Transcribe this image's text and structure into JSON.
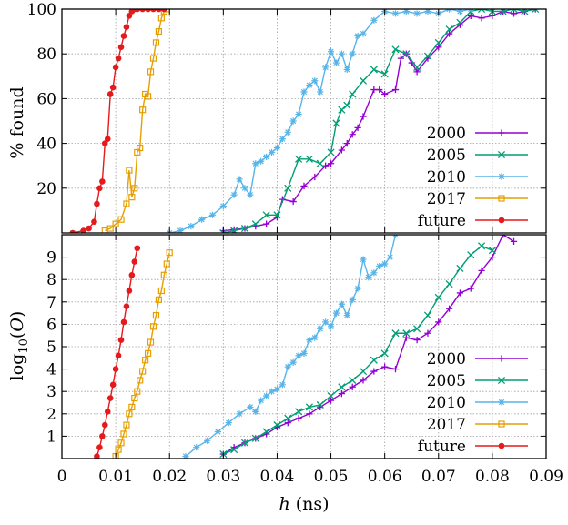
{
  "chart_data": [
    {
      "type": "line",
      "xlabel": "",
      "ylabel": "% found",
      "xlim": [
        0,
        0.09
      ],
      "ylim": [
        0,
        100
      ],
      "yticks": [
        20,
        40,
        60,
        80,
        100
      ],
      "grid": true,
      "legend_position": "bottom-right",
      "series": [
        {
          "name": "2000",
          "color": "#9400d3",
          "marker": "plus",
          "x": [
            0.03,
            0.032,
            0.034,
            0.036,
            0.038,
            0.04,
            0.041,
            0.043,
            0.045,
            0.047,
            0.049,
            0.05,
            0.052,
            0.053,
            0.054,
            0.055,
            0.056,
            0.058,
            0.059,
            0.06,
            0.062,
            0.063,
            0.064,
            0.065,
            0.066,
            0.068,
            0.07,
            0.072,
            0.074,
            0.076,
            0.078,
            0.08,
            0.082,
            0.084,
            0.086,
            0.088
          ],
          "y": [
            1,
            1.5,
            2,
            3,
            4,
            7,
            15,
            14,
            21,
            25,
            30,
            31,
            37,
            40,
            44,
            47,
            52,
            64,
            64,
            62,
            64,
            78,
            80,
            76,
            72,
            78,
            83,
            89,
            93,
            97,
            96,
            97,
            99,
            98,
            99,
            100
          ]
        },
        {
          "name": "2005",
          "color": "#009e73",
          "marker": "x",
          "x": [
            0.03,
            0.032,
            0.034,
            0.036,
            0.038,
            0.04,
            0.042,
            0.044,
            0.046,
            0.048,
            0.05,
            0.051,
            0.052,
            0.053,
            0.054,
            0.056,
            0.058,
            0.06,
            0.062,
            0.064,
            0.066,
            0.068,
            0.07,
            0.072,
            0.074,
            0.076,
            0.078,
            0.08,
            0.082,
            0.084,
            0.086,
            0.088
          ],
          "y": [
            0,
            1,
            2,
            4,
            8,
            8,
            20,
            33,
            33,
            31,
            36,
            49,
            55,
            57,
            62,
            68,
            73,
            71,
            82,
            80,
            74,
            79,
            85,
            91,
            94,
            99,
            100,
            99,
            99,
            100,
            99,
            100
          ]
        },
        {
          "name": "2010",
          "color": "#56b4e9",
          "marker": "star",
          "x": [
            0.02,
            0.022,
            0.024,
            0.026,
            0.028,
            0.03,
            0.032,
            0.033,
            0.034,
            0.035,
            0.036,
            0.037,
            0.038,
            0.039,
            0.04,
            0.041,
            0.042,
            0.043,
            0.044,
            0.045,
            0.046,
            0.047,
            0.048,
            0.049,
            0.05,
            0.051,
            0.052,
            0.053,
            0.054,
            0.055,
            0.056,
            0.058,
            0.06,
            0.062,
            0.064,
            0.066,
            0.068,
            0.07,
            0.072,
            0.074,
            0.076
          ],
          "y": [
            0,
            1,
            3,
            6,
            8,
            12,
            17,
            24,
            20,
            17,
            31,
            32,
            34,
            36,
            38,
            42,
            45,
            50,
            53,
            63,
            66,
            68,
            63,
            74,
            81,
            76,
            80,
            73,
            80,
            88,
            89,
            95,
            99,
            98,
            99,
            98,
            99,
            98,
            100,
            99,
            100
          ]
        },
        {
          "name": "2017",
          "color": "#e69f00",
          "marker": "square",
          "x": [
            0.008,
            0.009,
            0.01,
            0.011,
            0.012,
            0.0125,
            0.013,
            0.0135,
            0.014,
            0.0145,
            0.015,
            0.0155,
            0.016,
            0.0165,
            0.017,
            0.0175,
            0.018,
            0.0185,
            0.019,
            0.0195
          ],
          "y": [
            1,
            2,
            4,
            6,
            13,
            28,
            16,
            20,
            36,
            38,
            55,
            62,
            61,
            72,
            78,
            85,
            90,
            96,
            99,
            100
          ]
        },
        {
          "name": "future",
          "color": "#e41a1c",
          "marker": "circle",
          "x": [
            0.002,
            0.004,
            0.005,
            0.006,
            0.0065,
            0.007,
            0.0075,
            0.008,
            0.0085,
            0.009,
            0.0095,
            0.01,
            0.0105,
            0.011,
            0.0115,
            0.012,
            0.0125,
            0.013,
            0.0135,
            0.014,
            0.015,
            0.016,
            0.017,
            0.018,
            0.019
          ],
          "y": [
            0,
            1,
            2,
            5,
            13,
            20,
            23,
            40,
            42,
            62,
            65,
            74,
            78,
            83,
            88,
            92,
            97,
            99,
            100,
            100,
            100,
            100,
            100,
            100,
            100
          ]
        }
      ]
    },
    {
      "type": "line",
      "xlabel": "h (ns)",
      "ylabel": "log10(O)",
      "xlim": [
        0,
        0.09
      ],
      "ylim": [
        0,
        10
      ],
      "xticks": [
        0,
        0.01,
        0.02,
        0.03,
        0.04,
        0.05,
        0.06,
        0.07,
        0.08,
        0.09
      ],
      "yticks": [
        1,
        2,
        3,
        4,
        5,
        6,
        7,
        8,
        9
      ],
      "grid": true,
      "legend_position": "bottom-right",
      "series": [
        {
          "name": "2000",
          "color": "#9400d3",
          "marker": "plus",
          "x": [
            0.03,
            0.032,
            0.034,
            0.036,
            0.038,
            0.04,
            0.042,
            0.044,
            0.046,
            0.048,
            0.05,
            0.052,
            0.054,
            0.056,
            0.058,
            0.06,
            0.062,
            0.064,
            0.066,
            0.068,
            0.07,
            0.072,
            0.074,
            0.076,
            0.078,
            0.08,
            0.082,
            0.084
          ],
          "y": [
            0.2,
            0.5,
            0.7,
            0.9,
            1.1,
            1.4,
            1.6,
            1.8,
            2.0,
            2.3,
            2.6,
            2.9,
            3.2,
            3.5,
            3.9,
            4.1,
            4.0,
            5.4,
            5.3,
            5.6,
            6.1,
            6.7,
            7.4,
            7.6,
            8.4,
            9.0,
            10.0,
            9.7
          ]
        },
        {
          "name": "2005",
          "color": "#009e73",
          "marker": "x",
          "x": [
            0.03,
            0.032,
            0.034,
            0.036,
            0.038,
            0.04,
            0.042,
            0.044,
            0.046,
            0.048,
            0.05,
            0.052,
            0.054,
            0.056,
            0.058,
            0.06,
            0.062,
            0.064,
            0.066,
            0.068,
            0.07,
            0.072,
            0.074,
            0.076,
            0.078,
            0.08
          ],
          "y": [
            0.2,
            0.4,
            0.7,
            0.9,
            1.2,
            1.5,
            1.8,
            2.1,
            2.3,
            2.4,
            2.8,
            3.2,
            3.5,
            3.9,
            4.4,
            4.7,
            5.6,
            5.6,
            5.8,
            6.4,
            7.2,
            7.8,
            8.5,
            9.1,
            9.5,
            9.3
          ]
        },
        {
          "name": "2010",
          "color": "#56b4e9",
          "marker": "star",
          "x": [
            0.023,
            0.025,
            0.027,
            0.029,
            0.031,
            0.033,
            0.035,
            0.036,
            0.037,
            0.038,
            0.039,
            0.04,
            0.041,
            0.042,
            0.043,
            0.044,
            0.045,
            0.046,
            0.047,
            0.048,
            0.049,
            0.05,
            0.051,
            0.052,
            0.053,
            0.054,
            0.055,
            0.056,
            0.057,
            0.058,
            0.059,
            0.06,
            0.061,
            0.062
          ],
          "y": [
            0.1,
            0.5,
            0.8,
            1.2,
            1.6,
            2.0,
            2.3,
            2.1,
            2.6,
            2.8,
            3.0,
            3.1,
            3.3,
            4.1,
            4.3,
            4.6,
            4.7,
            5.3,
            5.4,
            5.8,
            6.1,
            5.9,
            6.5,
            6.9,
            6.4,
            7.1,
            7.6,
            8.9,
            8.1,
            8.3,
            8.6,
            8.7,
            9.0,
            10.0
          ]
        },
        {
          "name": "2017",
          "color": "#e69f00",
          "marker": "square",
          "x": [
            0.01,
            0.0105,
            0.011,
            0.0115,
            0.012,
            0.0125,
            0.013,
            0.0135,
            0.014,
            0.0145,
            0.015,
            0.0155,
            0.016,
            0.0165,
            0.017,
            0.0175,
            0.018,
            0.0185,
            0.019,
            0.0195,
            0.02
          ],
          "y": [
            0.1,
            0.4,
            0.7,
            1.1,
            1.5,
            2.0,
            2.3,
            2.7,
            3.0,
            3.5,
            3.9,
            4.4,
            4.7,
            5.2,
            5.9,
            6.4,
            7.1,
            7.5,
            8.2,
            8.7,
            9.2
          ]
        },
        {
          "name": "future",
          "color": "#e41a1c",
          "marker": "circle",
          "x": [
            0.0065,
            0.007,
            0.0075,
            0.008,
            0.0085,
            0.009,
            0.0095,
            0.01,
            0.0105,
            0.011,
            0.0115,
            0.012,
            0.0125,
            0.013,
            0.0135,
            0.014
          ],
          "y": [
            0.1,
            0.5,
            1.0,
            1.5,
            2.1,
            2.7,
            3.3,
            4.0,
            4.6,
            5.3,
            6.1,
            6.8,
            7.5,
            8.2,
            8.8,
            9.4
          ]
        }
      ]
    }
  ]
}
